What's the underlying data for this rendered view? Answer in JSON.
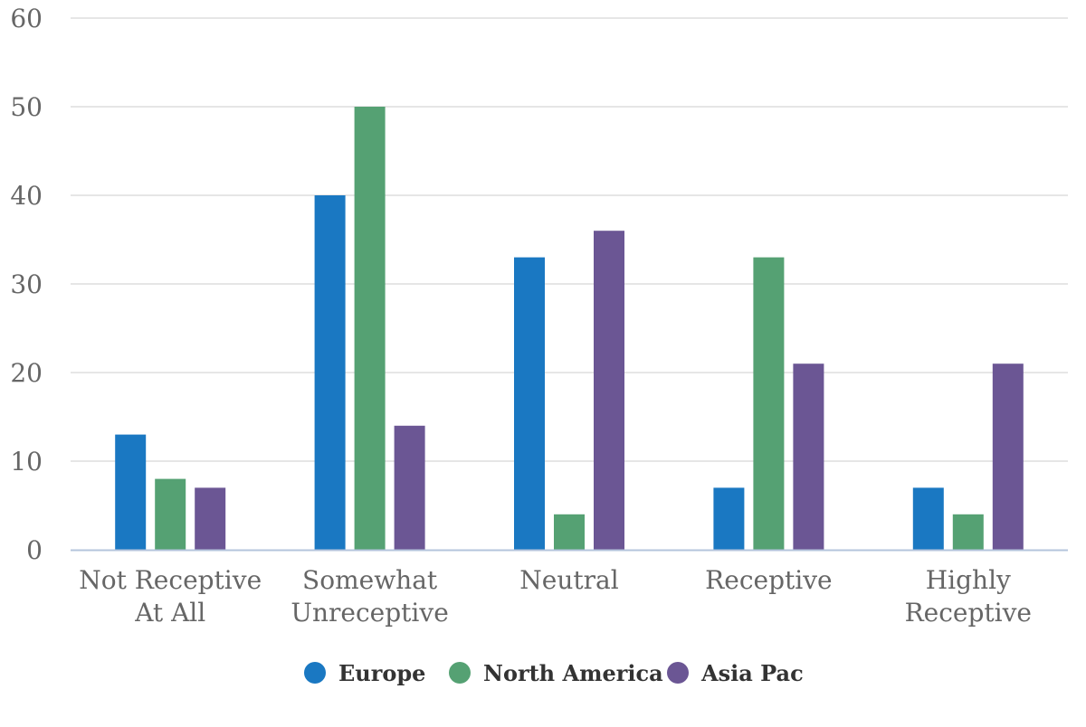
{
  "chart_data": {
    "type": "bar",
    "title": "",
    "xlabel": "",
    "ylabel": "",
    "ylim": [
      0,
      60
    ],
    "yticks": [
      0,
      10,
      20,
      30,
      40,
      50,
      60
    ],
    "grid": true,
    "legend_position": "bottom",
    "categories": [
      [
        "Not Receptive",
        "At All"
      ],
      [
        "Somewhat",
        "Unreceptive"
      ],
      [
        "Neutral"
      ],
      [
        "Receptive"
      ],
      [
        "Highly",
        "Receptive"
      ]
    ],
    "series": [
      {
        "name": "Europe",
        "color": "#1a78c2",
        "values": [
          13,
          40,
          33,
          7,
          7
        ]
      },
      {
        "name": "North America",
        "color": "#55a173",
        "values": [
          8,
          50,
          4,
          33,
          4
        ]
      },
      {
        "name": "Asia Pac",
        "color": "#6b5694",
        "values": [
          7,
          14,
          36,
          21,
          21
        ]
      }
    ],
    "colors": {
      "grid": "#dddddd",
      "axis": "#b4c4dc",
      "tick_text": "#666666",
      "legend_text": "#333333"
    }
  }
}
